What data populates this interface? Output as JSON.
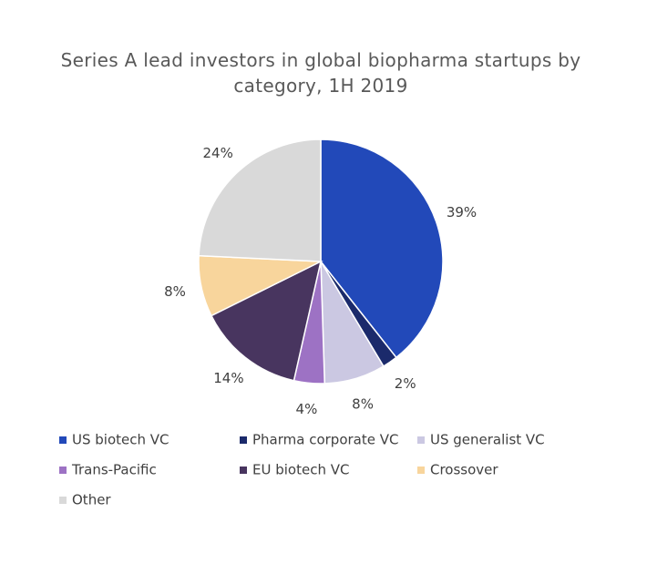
{
  "chart_data": {
    "type": "pie",
    "title": "Series A lead investors in global biopharma startups by category, 1H 2019",
    "categories": [
      "US biotech VC",
      "Pharma corporate VC",
      "US generalist VC",
      "Trans-Pacific",
      "EU biotech VC",
      "Crossover",
      "Other"
    ],
    "values": [
      39,
      2,
      8,
      4,
      14,
      8,
      24
    ],
    "value_labels": [
      "39%",
      "2%",
      "8%",
      "4%",
      "14%",
      "8%",
      "24%"
    ],
    "colors": [
      "#2249b9",
      "#1b2a6b",
      "#cbc8e2",
      "#9d72c4",
      "#48355f",
      "#f8d59c",
      "#d9d9d9"
    ]
  }
}
